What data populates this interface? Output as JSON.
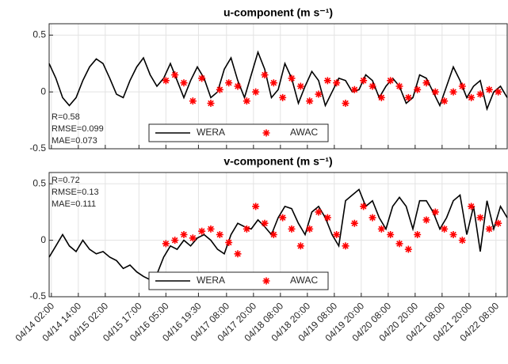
{
  "chart_data": [
    {
      "type": "line",
      "title": "u-component (m s⁻¹)",
      "annotations": [
        "R=0.58",
        "RMSE=0.099",
        "MAE=0.073"
      ],
      "annotation_position": "lower left",
      "xlim": [
        "04/14 01:00",
        "04/22 13:00"
      ],
      "xticks": [
        "04/14 02:00",
        "04/14 14:00",
        "04/15 02:00",
        "04/15 17:00",
        "04/16 05:00",
        "04/16 19:30",
        "04/17 08:00",
        "04/17 20:00",
        "04/18 08:00",
        "04/18 20:00",
        "04/19 08:00",
        "04/19 20:00",
        "04/20 08:00",
        "04/20 20:00",
        "04/21 08:00",
        "04/21 20:00",
        "04/22 08:00"
      ],
      "xtick_labels": false,
      "ylim": [
        -0.5,
        0.6
      ],
      "yticks": [
        -0.5,
        0,
        0.5
      ],
      "grid": true,
      "legend": "lower center",
      "series": [
        {
          "name": "WERA",
          "color": "#000000",
          "marker": "line",
          "x": [
            "04/14 01:00",
            "04/14 04:00",
            "04/14 07:00",
            "04/14 10:00",
            "04/14 13:00",
            "04/14 16:00",
            "04/14 19:00",
            "04/14 22:00",
            "04/15 01:00",
            "04/15 04:00",
            "04/15 07:00",
            "04/15 10:00",
            "04/15 13:00",
            "04/15 16:00",
            "04/15 19:00",
            "04/15 22:00",
            "04/16 01:00",
            "04/16 04:00",
            "04/16 07:00",
            "04/16 10:00",
            "04/16 13:00",
            "04/16 16:00",
            "04/16 19:00",
            "04/16 22:00",
            "04/17 01:00",
            "04/17 04:00",
            "04/17 07:00",
            "04/17 10:00",
            "04/17 13:00",
            "04/17 16:00",
            "04/17 19:00",
            "04/17 22:00",
            "04/18 01:00",
            "04/18 04:00",
            "04/18 07:00",
            "04/18 10:00",
            "04/18 13:00",
            "04/18 16:00",
            "04/18 19:00",
            "04/18 22:00",
            "04/19 01:00",
            "04/19 04:00",
            "04/19 07:00",
            "04/19 10:00",
            "04/19 13:00",
            "04/19 16:00",
            "04/19 19:00",
            "04/19 22:00",
            "04/20 01:00",
            "04/20 04:00",
            "04/20 07:00",
            "04/20 10:00",
            "04/20 13:00",
            "04/20 16:00",
            "04/20 19:00",
            "04/20 22:00",
            "04/21 01:00",
            "04/21 04:00",
            "04/21 07:00",
            "04/21 10:00",
            "04/21 13:00",
            "04/21 16:00",
            "04/21 19:00",
            "04/21 22:00",
            "04/22 01:00",
            "04/22 04:00",
            "04/22 07:00",
            "04/22 10:00",
            "04/22 13:00"
          ],
          "values": [
            0.25,
            0.12,
            -0.05,
            -0.12,
            -0.05,
            0.1,
            0.22,
            0.29,
            0.25,
            0.12,
            -0.02,
            -0.05,
            0.1,
            0.22,
            0.3,
            0.15,
            0.05,
            0.12,
            0.25,
            0.1,
            -0.05,
            0.1,
            0.22,
            0.12,
            -0.05,
            0.0,
            0.2,
            0.3,
            0.1,
            -0.05,
            0.15,
            0.35,
            0.2,
            -0.05,
            0.02,
            0.25,
            0.12,
            -0.1,
            0.05,
            0.18,
            0.1,
            -0.12,
            0.0,
            0.12,
            0.1,
            0.0,
            0.02,
            0.15,
            0.1,
            -0.05,
            0.05,
            0.12,
            0.05,
            -0.1,
            -0.05,
            0.15,
            0.12,
            0.0,
            -0.12,
            0.05,
            0.22,
            0.1,
            -0.05,
            0.05,
            0.1,
            -0.15,
            0.0,
            0.05,
            -0.05
          ]
        },
        {
          "name": "AWAC",
          "color": "#ff0000",
          "marker": "asterisk",
          "x": [
            "04/16 05:00",
            "04/16 09:00",
            "04/16 13:00",
            "04/16 17:00",
            "04/16 21:00",
            "04/17 01:00",
            "04/17 05:00",
            "04/17 09:00",
            "04/17 13:00",
            "04/17 17:00",
            "04/17 21:00",
            "04/18 01:00",
            "04/18 05:00",
            "04/18 09:00",
            "04/18 13:00",
            "04/18 17:00",
            "04/18 21:00",
            "04/19 01:00",
            "04/19 05:00",
            "04/19 09:00",
            "04/19 13:00",
            "04/19 17:00",
            "04/19 21:00",
            "04/20 01:00",
            "04/20 05:00",
            "04/20 09:00",
            "04/20 13:00",
            "04/20 17:00",
            "04/20 21:00",
            "04/21 01:00",
            "04/21 05:00",
            "04/21 09:00",
            "04/21 13:00",
            "04/21 17:00",
            "04/21 21:00",
            "04/22 01:00",
            "04/22 05:00",
            "04/22 09:00"
          ],
          "values": [
            0.1,
            0.15,
            0.08,
            -0.08,
            0.12,
            -0.1,
            0.02,
            0.08,
            0.05,
            -0.08,
            0.0,
            0.15,
            0.08,
            -0.05,
            0.12,
            0.05,
            -0.08,
            -0.02,
            0.1,
            0.08,
            -0.1,
            0.02,
            0.1,
            0.05,
            -0.05,
            0.1,
            0.05,
            -0.05,
            0.02,
            0.08,
            0.0,
            -0.08,
            0.0,
            0.05,
            -0.05,
            -0.02,
            0.02,
            0.0
          ]
        }
      ]
    },
    {
      "type": "line",
      "title": "v-component (m s⁻¹)",
      "annotations": [
        "R=0.72",
        "RMSE=0.13",
        "MAE=0.111"
      ],
      "annotation_position": "upper left",
      "xlim": [
        "04/14 01:00",
        "04/22 13:00"
      ],
      "xticks": [
        "04/14 02:00",
        "04/14 14:00",
        "04/15 02:00",
        "04/15 17:00",
        "04/16 05:00",
        "04/16 19:30",
        "04/17 08:00",
        "04/17 20:00",
        "04/18 08:00",
        "04/18 20:00",
        "04/19 08:00",
        "04/19 20:00",
        "04/20 08:00",
        "04/20 20:00",
        "04/21 08:00",
        "04/21 20:00",
        "04/22 08:00"
      ],
      "xtick_labels": true,
      "ylim": [
        -0.5,
        0.6
      ],
      "yticks": [
        -0.5,
        0,
        0.5
      ],
      "grid": true,
      "legend": "lower center",
      "series": [
        {
          "name": "WERA",
          "color": "#000000",
          "marker": "line",
          "x": [
            "04/14 01:00",
            "04/14 04:00",
            "04/14 07:00",
            "04/14 10:00",
            "04/14 13:00",
            "04/14 16:00",
            "04/14 19:00",
            "04/14 22:00",
            "04/15 01:00",
            "04/15 04:00",
            "04/15 07:00",
            "04/15 10:00",
            "04/15 13:00",
            "04/15 16:00",
            "04/15 19:00",
            "04/15 22:00",
            "04/16 01:00",
            "04/16 04:00",
            "04/16 07:00",
            "04/16 10:00",
            "04/16 13:00",
            "04/16 16:00",
            "04/16 19:00",
            "04/16 22:00",
            "04/17 01:00",
            "04/17 04:00",
            "04/17 07:00",
            "04/17 10:00",
            "04/17 13:00",
            "04/17 16:00",
            "04/17 19:00",
            "04/17 22:00",
            "04/18 01:00",
            "04/18 04:00",
            "04/18 07:00",
            "04/18 10:00",
            "04/18 13:00",
            "04/18 16:00",
            "04/18 19:00",
            "04/18 22:00",
            "04/19 01:00",
            "04/19 04:00",
            "04/19 07:00",
            "04/19 10:00",
            "04/19 13:00",
            "04/19 16:00",
            "04/19 19:00",
            "04/19 22:00",
            "04/20 01:00",
            "04/20 04:00",
            "04/20 07:00",
            "04/20 10:00",
            "04/20 13:00",
            "04/20 16:00",
            "04/20 19:00",
            "04/20 22:00",
            "04/21 01:00",
            "04/21 04:00",
            "04/21 07:00",
            "04/21 10:00",
            "04/21 13:00",
            "04/21 16:00",
            "04/21 19:00",
            "04/21 22:00",
            "04/22 01:00",
            "04/22 04:00",
            "04/22 07:00",
            "04/22 10:00",
            "04/22 13:00"
          ],
          "values": [
            -0.15,
            -0.05,
            0.05,
            -0.05,
            -0.1,
            0.0,
            -0.08,
            -0.12,
            -0.1,
            -0.15,
            -0.18,
            -0.25,
            -0.22,
            -0.28,
            -0.32,
            -0.35,
            -0.3,
            -0.15,
            -0.05,
            -0.08,
            0.0,
            -0.05,
            0.02,
            0.05,
            0.0,
            -0.08,
            -0.12,
            0.05,
            0.15,
            0.12,
            0.1,
            0.18,
            0.12,
            0.05,
            0.2,
            0.3,
            0.28,
            0.15,
            0.05,
            0.25,
            0.3,
            0.2,
            0.05,
            -0.05,
            0.35,
            0.4,
            0.45,
            0.3,
            0.35,
            0.2,
            0.1,
            0.3,
            0.38,
            0.3,
            0.1,
            0.35,
            0.35,
            0.25,
            0.1,
            0.2,
            0.35,
            0.4,
            0.05,
            0.3,
            -0.1,
            0.35,
            0.1,
            0.3,
            0.2
          ]
        },
        {
          "name": "AWAC",
          "color": "#ff0000",
          "marker": "asterisk",
          "x": [
            "04/16 05:00",
            "04/16 09:00",
            "04/16 13:00",
            "04/16 17:00",
            "04/16 21:00",
            "04/17 01:00",
            "04/17 05:00",
            "04/17 09:00",
            "04/17 13:00",
            "04/17 17:00",
            "04/17 21:00",
            "04/18 01:00",
            "04/18 05:00",
            "04/18 09:00",
            "04/18 13:00",
            "04/18 17:00",
            "04/18 21:00",
            "04/19 01:00",
            "04/19 05:00",
            "04/19 09:00",
            "04/19 13:00",
            "04/19 17:00",
            "04/19 21:00",
            "04/20 01:00",
            "04/20 05:00",
            "04/20 09:00",
            "04/20 13:00",
            "04/20 17:00",
            "04/20 21:00",
            "04/21 01:00",
            "04/21 05:00",
            "04/21 09:00",
            "04/21 13:00",
            "04/21 17:00",
            "04/21 21:00",
            "04/22 01:00",
            "04/22 05:00",
            "04/22 09:00"
          ],
          "values": [
            -0.03,
            0.0,
            0.05,
            0.02,
            0.08,
            0.1,
            0.05,
            -0.02,
            -0.12,
            0.1,
            0.3,
            0.15,
            0.05,
            0.2,
            0.1,
            -0.05,
            0.1,
            0.25,
            0.2,
            0.05,
            -0.05,
            0.15,
            0.3,
            0.2,
            0.1,
            0.05,
            -0.03,
            -0.08,
            0.05,
            0.18,
            0.25,
            0.1,
            0.05,
            0.0,
            0.3,
            0.2,
            0.1,
            0.15
          ]
        }
      ]
    }
  ]
}
